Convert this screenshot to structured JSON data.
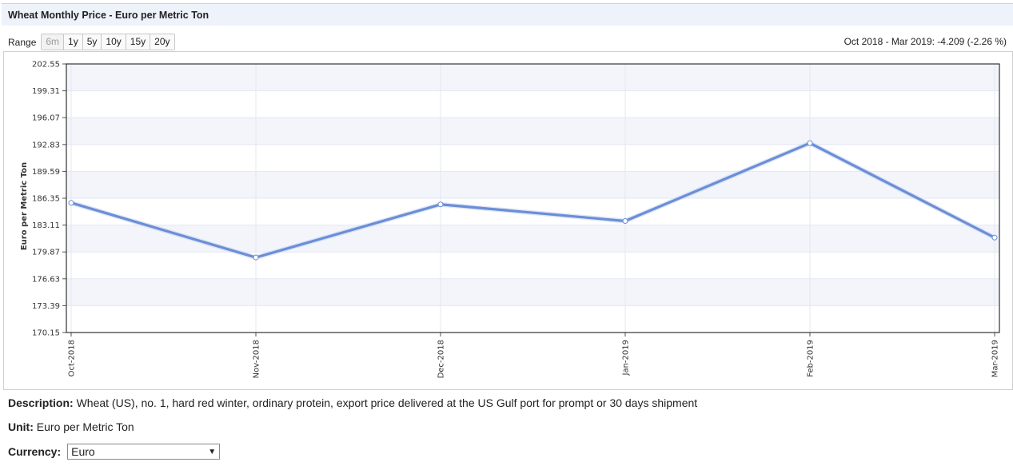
{
  "header": {
    "title": "Wheat Monthly Price - Euro per Metric Ton"
  },
  "range": {
    "label": "Range",
    "options": [
      "6m",
      "1y",
      "5y",
      "10y",
      "15y",
      "20y"
    ],
    "selected": "6m",
    "change_text": "Oct 2018 - Mar 2019: -4.209 (-2.26 %)"
  },
  "chart_data": {
    "type": "line",
    "ylabel": "Euro per Metric Ton",
    "xlabel": "",
    "categories": [
      "Oct-2018",
      "Nov-2018",
      "Dec-2018",
      "Jan-2019",
      "Feb-2019",
      "Mar-2019"
    ],
    "series": [
      {
        "values": [
          185.8,
          179.2,
          185.6,
          183.6,
          193.0,
          181.6
        ]
      }
    ],
    "yticks": [
      "170.15",
      "173.39",
      "176.63",
      "179.87",
      "183.11",
      "186.35",
      "189.59",
      "192.83",
      "196.07",
      "199.31",
      "202.55"
    ],
    "ylim": [
      170.15,
      202.55
    ],
    "grid": true,
    "line_color": "#6a8ed8"
  },
  "info": {
    "description_label": "Description:",
    "description": "Wheat (US), no. 1, hard red winter, ordinary protein, export price delivered at the US Gulf port for prompt or 30 days shipment",
    "unit_label": "Unit:",
    "unit": "Euro per Metric Ton",
    "currency_label": "Currency:",
    "currency_value": "Euro"
  }
}
